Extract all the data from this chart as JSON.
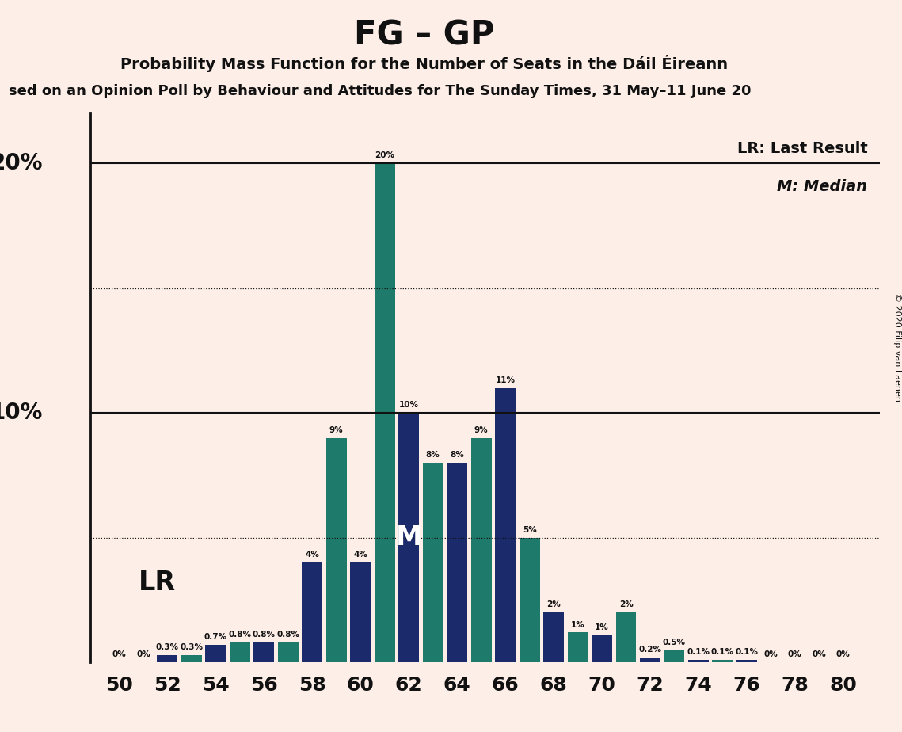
{
  "title": "FG – GP",
  "subtitle": "Probability Mass Function for the Number of Seats in the Dáil Éireann",
  "subtitle2": "sed on an Opinion Poll by Behaviour and Attitudes for The Sunday Times, 31 May–11 June 20",
  "copyright": "© 2020 Filip van Laenen",
  "bg_color": "#fdeee8",
  "bar_color_dark": "#1b2a6b",
  "bar_color_teal": "#1e7a6a",
  "seats": [
    50,
    51,
    52,
    53,
    54,
    55,
    56,
    57,
    58,
    59,
    60,
    61,
    62,
    63,
    64,
    65,
    66,
    67,
    68,
    69,
    70,
    71,
    72,
    73,
    74,
    75,
    76,
    77,
    78,
    79,
    80
  ],
  "probs": [
    0.0,
    0.0,
    0.3,
    0.3,
    0.7,
    0.8,
    0.8,
    0.8,
    4.0,
    9.0,
    4.0,
    20.0,
    10.0,
    8.0,
    8.0,
    9.0,
    11.0,
    5.0,
    2.0,
    1.2,
    1.1,
    2.0,
    0.2,
    0.5,
    0.1,
    0.1,
    0.1,
    0.0,
    0.0,
    0.0,
    0.0
  ],
  "lr_seat": 50,
  "median_seat": 62,
  "ylim": [
    0,
    22
  ],
  "solid_hlines": [
    10.0,
    20.0
  ],
  "dotted_hlines": [
    5.0,
    15.0
  ],
  "legend_lr": "LR: Last Result",
  "legend_m": "M: Median",
  "bar_width": 0.85
}
